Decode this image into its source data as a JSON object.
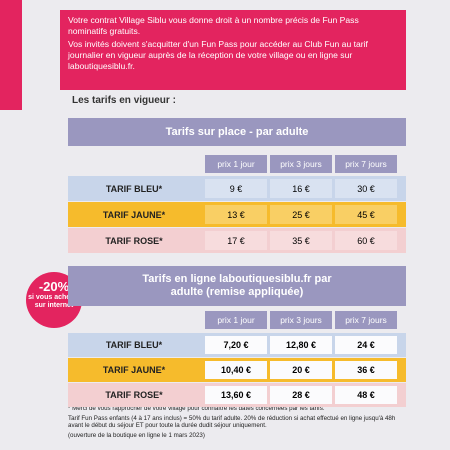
{
  "banner": [
    "Votre contrat Village Siblu vous donne droit à un nombre précis de Fun Pass nominatifs gratuits.",
    "Vos invités doivent s'acquitter d'un Fun Pass pour accéder au Club Fun au tarif journalier en vigueur auprès de la réception de votre village ou en ligne sur laboutiquesiblu.fr."
  ],
  "section_title": "Les tarifs en vigueur :",
  "badge": [
    "-20%",
    "si vous achetez sur internet"
  ],
  "tables": [
    {
      "title": "Tarifs sur place - par adulte",
      "columns": [
        "prix 1 jour",
        "prix 3 jours",
        "prix 7 jours"
      ],
      "rows": [
        [
          "TARIF BLEU*",
          "9 €",
          "16 €",
          "30 €"
        ],
        [
          "TARIF JAUNE*",
          "13 €",
          "25 €",
          "45 €"
        ],
        [
          "TARIF ROSE*",
          "17 €",
          "35 €",
          "60 €"
        ]
      ]
    },
    {
      "title": "Tarifs en ligne laboutiquesiblu.fr par adulte (remise appliquée)",
      "columns": [
        "prix 1 jour",
        "prix 3 jours",
        "prix 7 jours"
      ],
      "rows": [
        [
          "TARIF BLEU*",
          "7,20 €",
          "12,80 €",
          "24 €"
        ],
        [
          "TARIF JAUNE*",
          "10,40 €",
          "20 €",
          "36 €"
        ],
        [
          "TARIF ROSE*",
          "13,60 €",
          "28 €",
          "48 €"
        ]
      ]
    }
  ],
  "footnotes": [
    "* Merci de vous rapprocher de votre village pour connaître les dates concernées par les tarifs.",
    "Tarif Fun Pass enfants (4 à 17 ans inclus) = 50% du tarif adulte. 20% de réduction si achat effectué en ligne jusqu'à 48h avant le début du séjour ET pour toute la durée dudit séjour uniquement.",
    "(ouverture de la boutique en ligne le 1 mars 2023)"
  ]
}
